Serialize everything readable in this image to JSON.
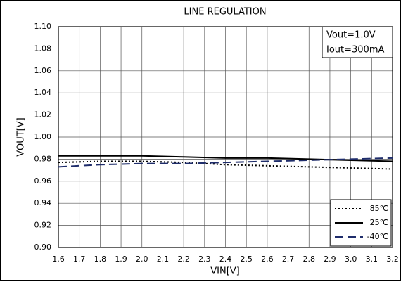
{
  "chart_data": {
    "type": "line",
    "title": "LINE  REGULATION",
    "x_label": "VIN[V]",
    "y_label": "VOUT[V]",
    "x": [
      1.6,
      1.8,
      2.0,
      2.2,
      2.4,
      2.6,
      2.8,
      3.0,
      3.2
    ],
    "series": [
      {
        "name": "85℃",
        "color": "#000000",
        "dash": "dotted",
        "values": [
          0.977,
          0.978,
          0.978,
          0.977,
          0.975,
          0.974,
          0.973,
          0.972,
          0.971
        ]
      },
      {
        "name": "25℃",
        "color": "#000000",
        "dash": "solid",
        "values": [
          0.983,
          0.983,
          0.983,
          0.982,
          0.981,
          0.981,
          0.98,
          0.979,
          0.978
        ]
      },
      {
        "name": "-40℃",
        "color": "#1f2d6b",
        "dash": "dashed",
        "values": [
          0.973,
          0.975,
          0.976,
          0.976,
          0.977,
          0.978,
          0.979,
          0.98,
          0.981
        ]
      }
    ],
    "xlim": [
      1.6,
      3.2
    ],
    "xticks": [
      1.6,
      1.7,
      1.8,
      1.9,
      {
        "value": 2,
        "label": "2.0"
      },
      2.1,
      2.2,
      2.3,
      2.4,
      2.5,
      2.6,
      2.7,
      2.8,
      2.9,
      {
        "value": 3,
        "label": "3.0"
      },
      3.1,
      3.2
    ],
    "ylim": [
      0.9,
      1.1
    ],
    "yticks": [
      {
        "value": 0.9,
        "label": "0.90"
      },
      0.92,
      0.94,
      0.96,
      0.98,
      {
        "value": 1,
        "label": "1.00"
      },
      1.02,
      1.04,
      1.06,
      1.08,
      {
        "value": 1.1,
        "label": "1.10"
      }
    ],
    "annotations": [
      "Vout=1.0V",
      "Iout=300mA"
    ],
    "grid": true,
    "legend": "lower right"
  }
}
